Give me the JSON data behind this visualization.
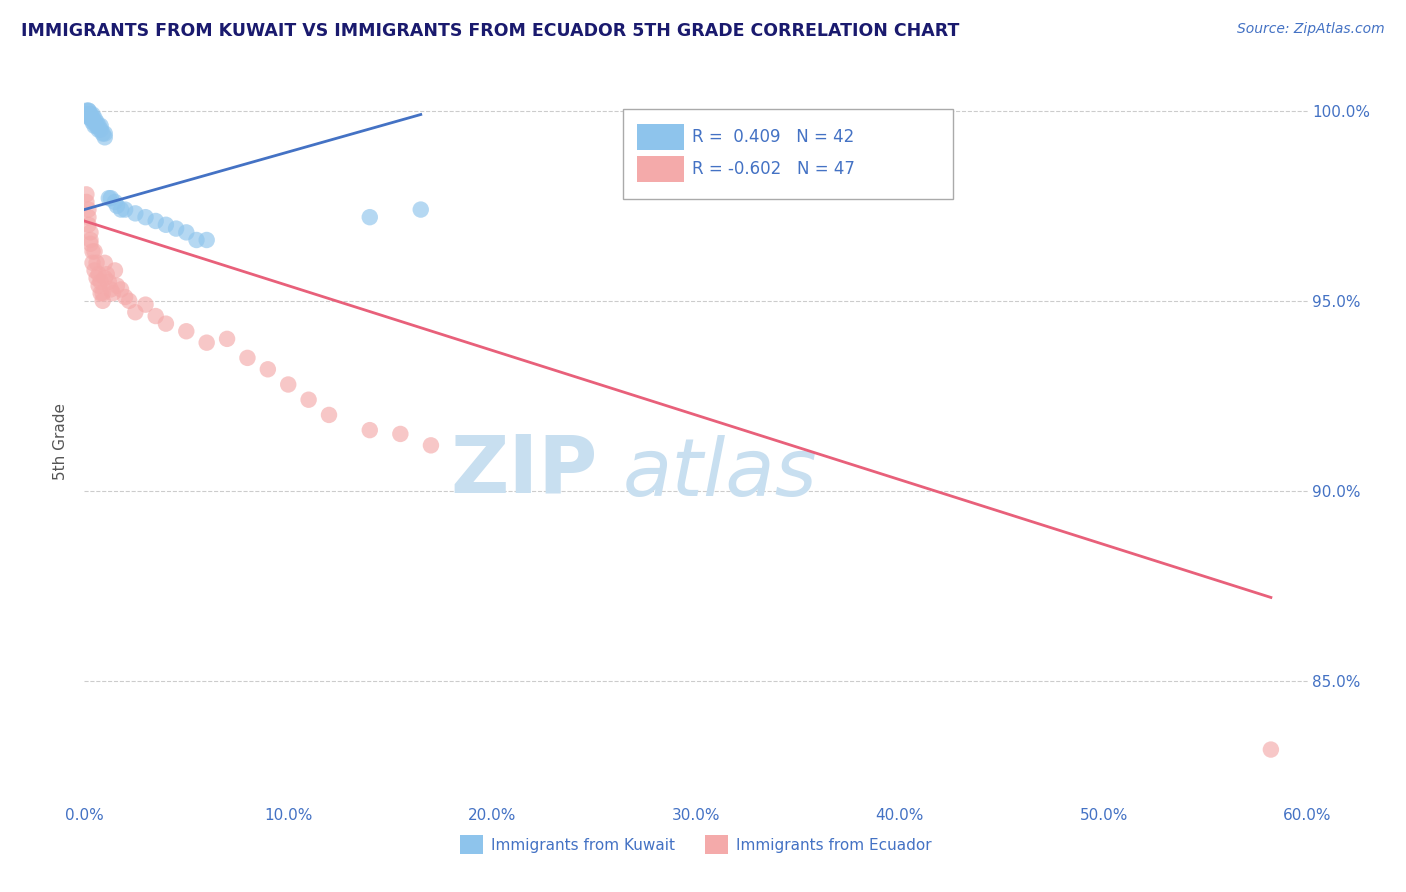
{
  "title": "IMMIGRANTS FROM KUWAIT VS IMMIGRANTS FROM ECUADOR 5TH GRADE CORRELATION CHART",
  "source_text": "Source: ZipAtlas.com",
  "ylabel": "5th Grade",
  "legend_label_blue": "Immigrants from Kuwait",
  "legend_label_pink": "Immigrants from Ecuador",
  "r_blue": 0.409,
  "n_blue": 42,
  "r_pink": -0.602,
  "n_pink": 47,
  "xlim": [
    0.0,
    0.6
  ],
  "ylim": [
    0.818,
    1.008
  ],
  "xtick_vals": [
    0.0,
    0.1,
    0.2,
    0.3,
    0.4,
    0.5,
    0.6
  ],
  "ytick_vals": [
    0.85,
    0.9,
    0.95,
    1.0
  ],
  "color_blue": "#8EC4EC",
  "color_blue_line": "#4472C4",
  "color_pink": "#F4AAAA",
  "color_pink_line": "#E8607A",
  "background_color": "#FFFFFF",
  "grid_color": "#CCCCCC",
  "title_color": "#1a1a6e",
  "axis_label_color": "#555555",
  "tick_label_color": "#4472C4",
  "watermark_color": "#C8DFF0",
  "blue_scatter_x": [
    0.001,
    0.001,
    0.001,
    0.002,
    0.002,
    0.002,
    0.002,
    0.003,
    0.003,
    0.003,
    0.003,
    0.004,
    0.004,
    0.004,
    0.005,
    0.005,
    0.005,
    0.006,
    0.006,
    0.007,
    0.007,
    0.008,
    0.008,
    0.009,
    0.01,
    0.01,
    0.012,
    0.013,
    0.015,
    0.016,
    0.018,
    0.02,
    0.025,
    0.03,
    0.035,
    0.04,
    0.045,
    0.05,
    0.055,
    0.06,
    0.14,
    0.165
  ],
  "blue_scatter_y": [
    0.999,
    0.999,
    1.0,
    0.999,
    0.999,
    1.0,
    1.0,
    0.998,
    0.999,
    0.999,
    0.998,
    0.997,
    0.998,
    0.999,
    0.997,
    0.996,
    0.998,
    0.996,
    0.997,
    0.995,
    0.996,
    0.995,
    0.996,
    0.994,
    0.993,
    0.994,
    0.977,
    0.977,
    0.976,
    0.975,
    0.974,
    0.974,
    0.973,
    0.972,
    0.971,
    0.97,
    0.969,
    0.968,
    0.966,
    0.966,
    0.972,
    0.974
  ],
  "pink_scatter_x": [
    0.001,
    0.001,
    0.002,
    0.002,
    0.002,
    0.003,
    0.003,
    0.003,
    0.004,
    0.004,
    0.005,
    0.005,
    0.006,
    0.006,
    0.007,
    0.007,
    0.008,
    0.008,
    0.009,
    0.009,
    0.01,
    0.01,
    0.011,
    0.012,
    0.013,
    0.014,
    0.015,
    0.016,
    0.018,
    0.02,
    0.022,
    0.025,
    0.03,
    0.035,
    0.04,
    0.05,
    0.06,
    0.07,
    0.08,
    0.09,
    0.1,
    0.11,
    0.12,
    0.14,
    0.155,
    0.17,
    0.582
  ],
  "pink_scatter_y": [
    0.978,
    0.976,
    0.974,
    0.972,
    0.97,
    0.968,
    0.966,
    0.965,
    0.963,
    0.96,
    0.963,
    0.958,
    0.96,
    0.956,
    0.957,
    0.954,
    0.955,
    0.952,
    0.952,
    0.95,
    0.96,
    0.956,
    0.957,
    0.955,
    0.953,
    0.952,
    0.958,
    0.954,
    0.953,
    0.951,
    0.95,
    0.947,
    0.949,
    0.946,
    0.944,
    0.942,
    0.939,
    0.94,
    0.935,
    0.932,
    0.928,
    0.924,
    0.92,
    0.916,
    0.915,
    0.912,
    0.832
  ],
  "blue_line_x": [
    0.0,
    0.165
  ],
  "blue_line_y": [
    0.974,
    0.999
  ],
  "pink_line_x": [
    0.0,
    0.582
  ],
  "pink_line_y": [
    0.971,
    0.872
  ]
}
